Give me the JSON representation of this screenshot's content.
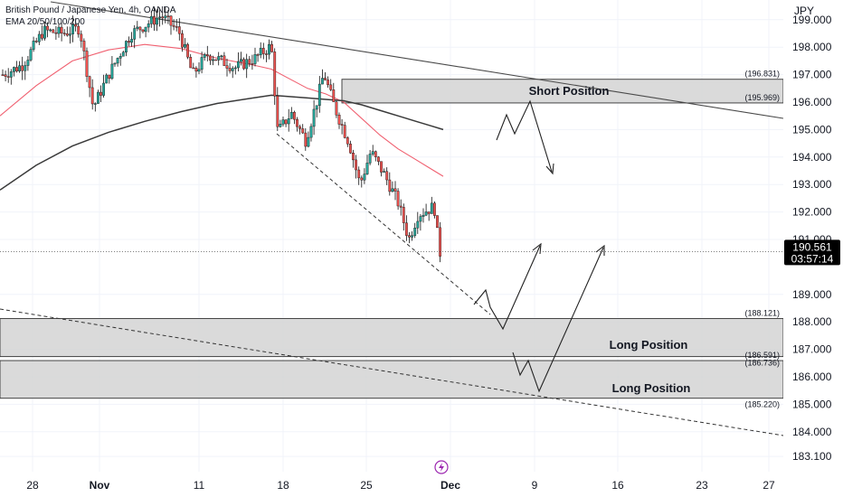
{
  "header": {
    "symbol_line": "British Pound / Japanese Yen, 4h, OANDA",
    "indicator_line": "EMA 20/50/100/200"
  },
  "price_axis": {
    "currency": "JPY",
    "ticks": [
      "199.000",
      "198.000",
      "197.000",
      "196.000",
      "195.000",
      "194.000",
      "193.000",
      "192.000",
      "191.000",
      "189.000",
      "188.000",
      "187.000",
      "186.000",
      "185.000",
      "184.000",
      "183.100"
    ]
  },
  "current_price": {
    "price_label": "190.561",
    "countdown_label": "03:57:14",
    "value": 190.561
  },
  "time_axis": {
    "labels": [
      "28",
      "Nov",
      "11",
      "18",
      "25",
      "Dec",
      "9",
      "16",
      "23",
      "27"
    ]
  },
  "zones": [
    {
      "name": "Short Position",
      "top": 196.831,
      "bottom": 195.969,
      "top_label": "(196.831)",
      "bottom_label": "(195.969)",
      "label": "Short Position"
    },
    {
      "name": "Long Position",
      "top": 188.121,
      "bottom": 186.736,
      "top_label": "(188.121)",
      "bottom_label": "(186.736)",
      "label": "Long Position"
    },
    {
      "name": "Long Position",
      "top": 186.591,
      "bottom": 185.22,
      "top_label": "(186.591)",
      "bottom_label": "(185.220)",
      "label": "Long Position"
    }
  ],
  "colors": {
    "up_candle": "#26a69a",
    "down_candle": "#ef5350",
    "ema_fast": "#f06070",
    "ema_slow": "#3a3a3a",
    "zone_fill": "#d4d4d4",
    "price_tag_bg": "#000000"
  },
  "chart_data": {
    "type": "candlestick",
    "title": "British Pound / Japanese Yen, 4h, OANDA",
    "ylim": [
      183.1,
      199.4
    ],
    "y_scale": "linear",
    "grid": true,
    "ohlc_approx": [
      {
        "date": "Oct 28",
        "open": 197.2,
        "high": 197.8,
        "low": 196.4,
        "close": 197.0
      },
      {
        "date": "Nov 1",
        "open": 197.4,
        "high": 198.6,
        "low": 195.4,
        "close": 196.8
      },
      {
        "date": "Nov 8",
        "open": 198.2,
        "high": 199.4,
        "low": 197.0,
        "close": 198.3
      },
      {
        "date": "Nov 11",
        "open": 197.8,
        "high": 198.4,
        "low": 196.9,
        "close": 197.8
      },
      {
        "date": "Nov 15",
        "open": 197.5,
        "high": 198.2,
        "low": 196.8,
        "close": 197.7
      },
      {
        "date": "Nov 18",
        "open": 196.4,
        "high": 196.5,
        "low": 194.8,
        "close": 195.0
      },
      {
        "date": "Nov 21",
        "open": 195.5,
        "high": 197.3,
        "low": 194.3,
        "close": 196.3
      },
      {
        "date": "Nov 25",
        "open": 194.0,
        "high": 194.4,
        "low": 193.1,
        "close": 193.8
      },
      {
        "date": "Nov 28",
        "open": 192.0,
        "high": 192.3,
        "low": 190.9,
        "close": 192.2
      },
      {
        "date": "Nov 30",
        "open": 191.4,
        "high": 192.3,
        "low": 190.4,
        "close": 190.561
      }
    ],
    "series": [
      {
        "name": "EMA 20/50/100/200",
        "type": "ema"
      },
      {
        "name": "EMA 20/50/100/200",
        "type": "ema"
      }
    ]
  }
}
